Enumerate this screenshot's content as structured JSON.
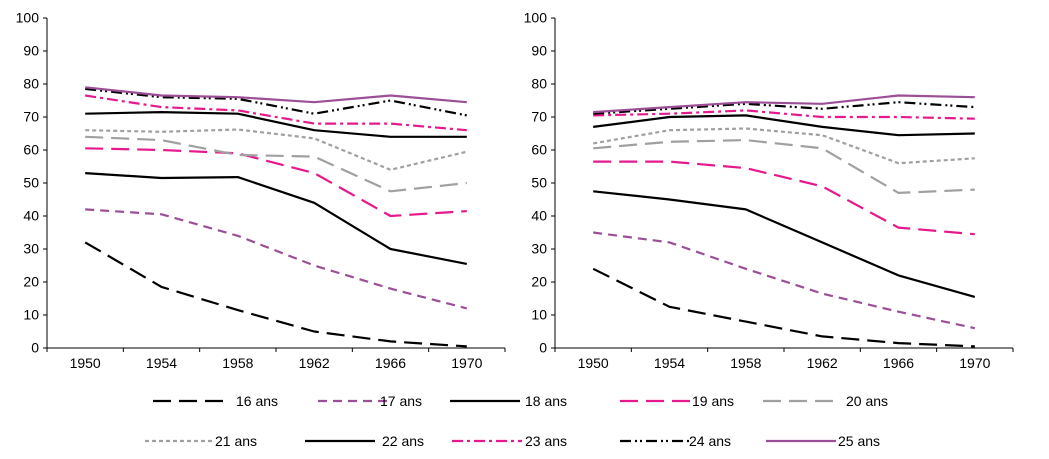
{
  "chart_data": [
    {
      "type": "line",
      "x": [
        1950,
        1954,
        1958,
        1962,
        1966,
        1970
      ],
      "xticks": [
        "1950",
        "1954",
        "1958",
        "1962",
        "1966",
        "1970"
      ],
      "yticks": [
        "0",
        "10",
        "20",
        "30",
        "40",
        "50",
        "60",
        "70",
        "80",
        "90",
        "100"
      ],
      "ylim": [
        0,
        100
      ],
      "grid": false,
      "series": [
        {
          "name": "16 ans",
          "values": [
            32,
            18.5,
            11.5,
            5,
            2,
            0.5
          ]
        },
        {
          "name": "17 ans",
          "values": [
            42,
            40.5,
            34,
            25,
            18,
            12
          ]
        },
        {
          "name": "18 ans",
          "values": [
            53,
            51.5,
            51.8,
            44,
            30,
            25.5
          ]
        },
        {
          "name": "19 ans",
          "values": [
            60.5,
            60,
            59,
            53,
            40,
            41.5
          ]
        },
        {
          "name": "20 ans",
          "values": [
            64,
            63,
            58.5,
            58,
            47.5,
            50
          ]
        },
        {
          "name": "21 ans",
          "values": [
            66,
            65.5,
            66.2,
            63.5,
            54,
            59.5
          ]
        },
        {
          "name": "22 ans",
          "values": [
            71,
            71.5,
            71,
            66,
            64,
            64
          ]
        },
        {
          "name": "23 ans",
          "values": [
            76.5,
            73,
            72,
            68,
            68,
            66
          ]
        },
        {
          "name": "24 ans",
          "values": [
            78.5,
            76,
            75.5,
            71,
            75,
            70.5
          ]
        },
        {
          "name": "25 ans",
          "values": [
            79,
            76.5,
            76,
            74.5,
            76.5,
            74.5
          ]
        }
      ]
    },
    {
      "type": "line",
      "x": [
        1950,
        1954,
        1958,
        1962,
        1966,
        1970
      ],
      "xticks": [
        "1950",
        "1954",
        "1958",
        "1962",
        "1966",
        "1970"
      ],
      "yticks": [
        "0",
        "10",
        "20",
        "30",
        "40",
        "50",
        "60",
        "70",
        "80",
        "90",
        "100"
      ],
      "ylim": [
        0,
        100
      ],
      "grid": false,
      "series": [
        {
          "name": "16 ans",
          "values": [
            24,
            12.5,
            8,
            3.5,
            1.5,
            0.5
          ]
        },
        {
          "name": "17 ans",
          "values": [
            35,
            32,
            24,
            16.5,
            11,
            6
          ]
        },
        {
          "name": "18 ans",
          "values": [
            47.5,
            45,
            42,
            32,
            22,
            15.5
          ]
        },
        {
          "name": "19 ans",
          "values": [
            56.5,
            56.5,
            54.5,
            49,
            36.5,
            34.5
          ]
        },
        {
          "name": "20 ans",
          "values": [
            60.5,
            62.5,
            63,
            60.5,
            47,
            48
          ]
        },
        {
          "name": "21 ans",
          "values": [
            62,
            66,
            66.5,
            64.5,
            56,
            57.5
          ]
        },
        {
          "name": "22 ans",
          "values": [
            67,
            70,
            70.5,
            67,
            64.5,
            65
          ]
        },
        {
          "name": "23 ans",
          "values": [
            70.5,
            71,
            72,
            70,
            70,
            69.5
          ]
        },
        {
          "name": "24 ans",
          "values": [
            71,
            72.5,
            74,
            72.5,
            74.5,
            73
          ]
        },
        {
          "name": "25 ans",
          "values": [
            71.5,
            73,
            74.5,
            74,
            76.5,
            76
          ]
        }
      ]
    }
  ],
  "legend": {
    "placement": "bottom",
    "entries": [
      {
        "label": "16 ans",
        "color": "#000000",
        "dash": "long-dash"
      },
      {
        "label": "17 ans",
        "color": "#9b4f96",
        "dash": "dash"
      },
      {
        "label": "18 ans",
        "color": "#000000",
        "dash": "solid"
      },
      {
        "label": "19 ans",
        "color": "#e6198c",
        "dash": "long-dash"
      },
      {
        "label": "20 ans",
        "color": "#a0a0a0",
        "dash": "long-dash"
      },
      {
        "label": "21 ans",
        "color": "#a0a0a0",
        "dash": "dot"
      },
      {
        "label": "22 ans",
        "color": "#000000",
        "dash": "solid"
      },
      {
        "label": "23 ans",
        "color": "#e6198c",
        "dash": "dash-dot"
      },
      {
        "label": "24 ans",
        "color": "#000000",
        "dash": "dash-dot-dot"
      },
      {
        "label": "25 ans",
        "color": "#9b4f96",
        "dash": "solid"
      }
    ]
  }
}
